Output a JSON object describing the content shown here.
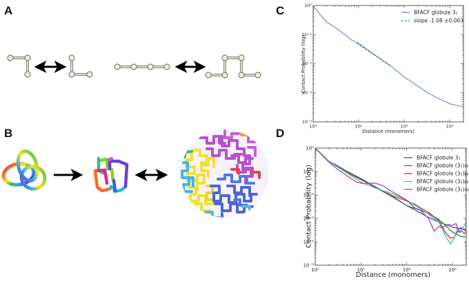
{
  "panels": {
    "a": {
      "label": "A"
    },
    "b": {
      "label": "B"
    },
    "c": {
      "label": "C"
    },
    "d": {
      "label": "D"
    }
  },
  "colors": {
    "bead_fill": "#efefdf",
    "bead_stroke": "#7d7d6e",
    "arrow": "#000000",
    "series_blue": "#3a4fc2",
    "series_green": "#1f8a2e",
    "series_red": "#e8231c",
    "series_cyan": "#27c9c9",
    "series_magenta": "#b23bb8",
    "slope_green": "#2d9a3a",
    "c_series_line": "#6f80d4"
  },
  "chart_data": [
    {
      "id": "C",
      "type": "line",
      "title": "",
      "xlabel": "Distance (monomers)",
      "ylabel": "Contact Probability (log)",
      "xscale": "log",
      "yscale": "log",
      "xlim": [
        1,
        2000
      ],
      "ylim": [
        0.0001,
        1
      ],
      "xticks": [
        "10^0",
        "10^1",
        "10^2",
        "10^3"
      ],
      "yticks": [
        "10^0",
        "10^-1",
        "10^-2",
        "10^-3",
        "10^-4"
      ],
      "legend_position": "upper right",
      "series": [
        {
          "name": "BFACF globule 3₁",
          "style": "solid",
          "color": "#6f80d4",
          "x": [
            1,
            1.5,
            2,
            3,
            5,
            7,
            10,
            20,
            50,
            100,
            200,
            300,
            500,
            700,
            1000,
            1500,
            2000
          ],
          "y": [
            1.0,
            0.45,
            0.27,
            0.18,
            0.1,
            0.065,
            0.05,
            0.023,
            0.0085,
            0.0035,
            0.0017,
            0.0011,
            0.0007,
            0.00055,
            0.00042,
            0.00036,
            0.00034
          ]
        },
        {
          "name": "slope -1.08 ±0.003",
          "style": "dashed",
          "color": "#2d9a3a",
          "x": [
            9,
            50
          ],
          "y": [
            0.052,
            0.0082
          ]
        }
      ]
    },
    {
      "id": "D",
      "type": "line",
      "title": "",
      "xlabel": "Distance (monomers)",
      "ylabel": "Contact Probability (log)",
      "xscale": "log",
      "yscale": "log",
      "xlim": [
        1,
        2000
      ],
      "ylim": [
        1e-05,
        1
      ],
      "xticks": [
        "10^0",
        "10^1",
        "10^2",
        "10^3"
      ],
      "yticks": [
        "10^0",
        "10^-1",
        "10^-2",
        "10^-3",
        "10^-4",
        "10^-5"
      ],
      "legend_position": "upper right",
      "series": [
        {
          "name": "BFACF globule 3₁",
          "color": "#3a4fc2",
          "x": [
            1,
            2,
            3,
            5,
            10,
            20,
            50,
            100,
            200,
            300,
            500,
            700,
            1000,
            1500,
            2000
          ],
          "y": [
            1.0,
            0.27,
            0.18,
            0.1,
            0.05,
            0.023,
            0.0085,
            0.0035,
            0.0017,
            0.0011,
            0.0007,
            0.00055,
            0.00042,
            0.00036,
            0.00034
          ]
        },
        {
          "name": "BFACF globule (3₁)₂₀",
          "color": "#1f8a2e",
          "x": [
            1,
            2,
            3,
            5,
            10,
            20,
            50,
            100,
            200,
            300,
            500,
            700,
            1000,
            1500,
            2000
          ],
          "y": [
            1.0,
            0.27,
            0.18,
            0.1,
            0.048,
            0.022,
            0.008,
            0.0035,
            0.0022,
            0.0016,
            0.0009,
            0.0005,
            0.00026,
            0.00017,
            0.00016
          ]
        },
        {
          "name": "BFACF globule (3₁)₄₀",
          "color": "#e8231c",
          "x": [
            1,
            2,
            3,
            5,
            10,
            20,
            50,
            100,
            150,
            200,
            300,
            500,
            700,
            900,
            1100,
            1300,
            1500,
            1700,
            2000
          ],
          "y": [
            1.0,
            0.27,
            0.17,
            0.09,
            0.045,
            0.022,
            0.009,
            0.0055,
            0.004,
            0.0028,
            0.0018,
            0.0008,
            0.00025,
            0.00014,
            0.00016,
            0.00028,
            0.0004,
            0.00035,
            0.00028
          ]
        },
        {
          "name": "BFACF globule (3₁)₆₀",
          "color": "#27c9c9",
          "x": [
            1,
            2,
            3,
            5,
            10,
            20,
            50,
            100,
            200,
            300,
            500,
            700,
            900,
            1100,
            1300,
            1500,
            1700,
            2000
          ],
          "y": [
            1.0,
            0.27,
            0.16,
            0.085,
            0.035,
            0.02,
            0.011,
            0.006,
            0.0025,
            0.0015,
            0.0007,
            0.00018,
            8e-05,
            0.00015,
            0.0004,
            0.00025,
            0.0004,
            0.0007
          ]
        },
        {
          "name": "BFACF globule (3₁)₁₀₀",
          "color": "#b23bb8",
          "x": [
            1,
            2,
            3,
            5,
            8,
            12,
            20,
            30,
            50,
            100,
            150,
            200,
            250,
            300,
            400,
            500,
            600,
            800,
            1000,
            1200,
            1400,
            1600,
            1800,
            2000
          ],
          "y": [
            1.0,
            0.25,
            0.13,
            0.065,
            0.035,
            0.03,
            0.032,
            0.025,
            0.013,
            0.006,
            0.0028,
            0.0022,
            0.0014,
            0.001,
            0.00028,
            0.00045,
            0.0004,
            0.00055,
            0.0005,
            0.0006,
            0.00025,
            0.0003,
            0.00022,
            0.00028
          ]
        }
      ]
    }
  ],
  "text": {
    "c_ylabel": "Contact Probability (log)",
    "c_xlabel": "Distance (monomers)",
    "d_ylabel": "Contact Probability (log)",
    "d_xlabel": "Distance (monomers)"
  }
}
